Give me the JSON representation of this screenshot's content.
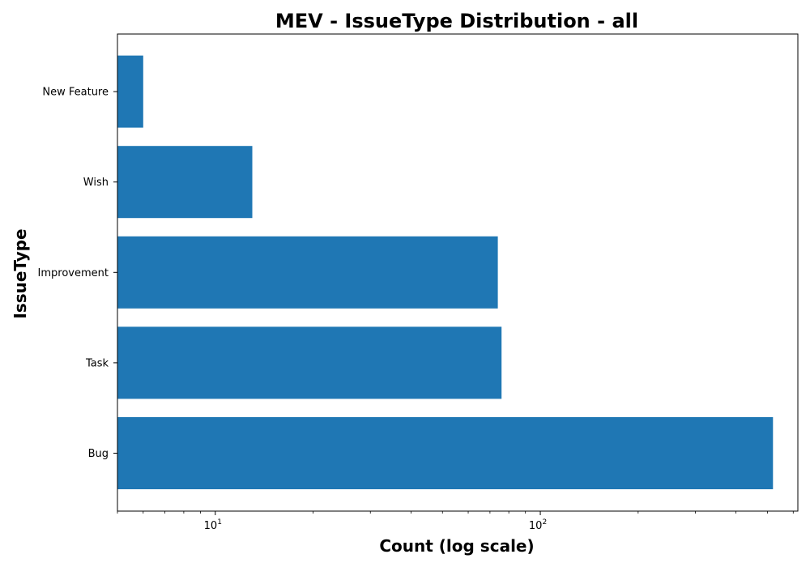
{
  "chart_data": {
    "type": "bar",
    "orientation": "horizontal",
    "title": "MEV - IssueType Distribution - all",
    "xlabel": "Count (log scale)",
    "ylabel": "IssueType",
    "x_scale": "log",
    "xlim": [
      5,
      620
    ],
    "categories": [
      "Bug",
      "Task",
      "Improvement",
      "Wish",
      "New Feature"
    ],
    "values": [
      520,
      76,
      74,
      13,
      6
    ],
    "x_ticks": [
      {
        "base": "10",
        "exponent": "1",
        "value": 10
      },
      {
        "base": "10",
        "exponent": "2",
        "value": 100
      }
    ],
    "grid": false,
    "legend": "none",
    "bar_color": "#1f77b4"
  }
}
